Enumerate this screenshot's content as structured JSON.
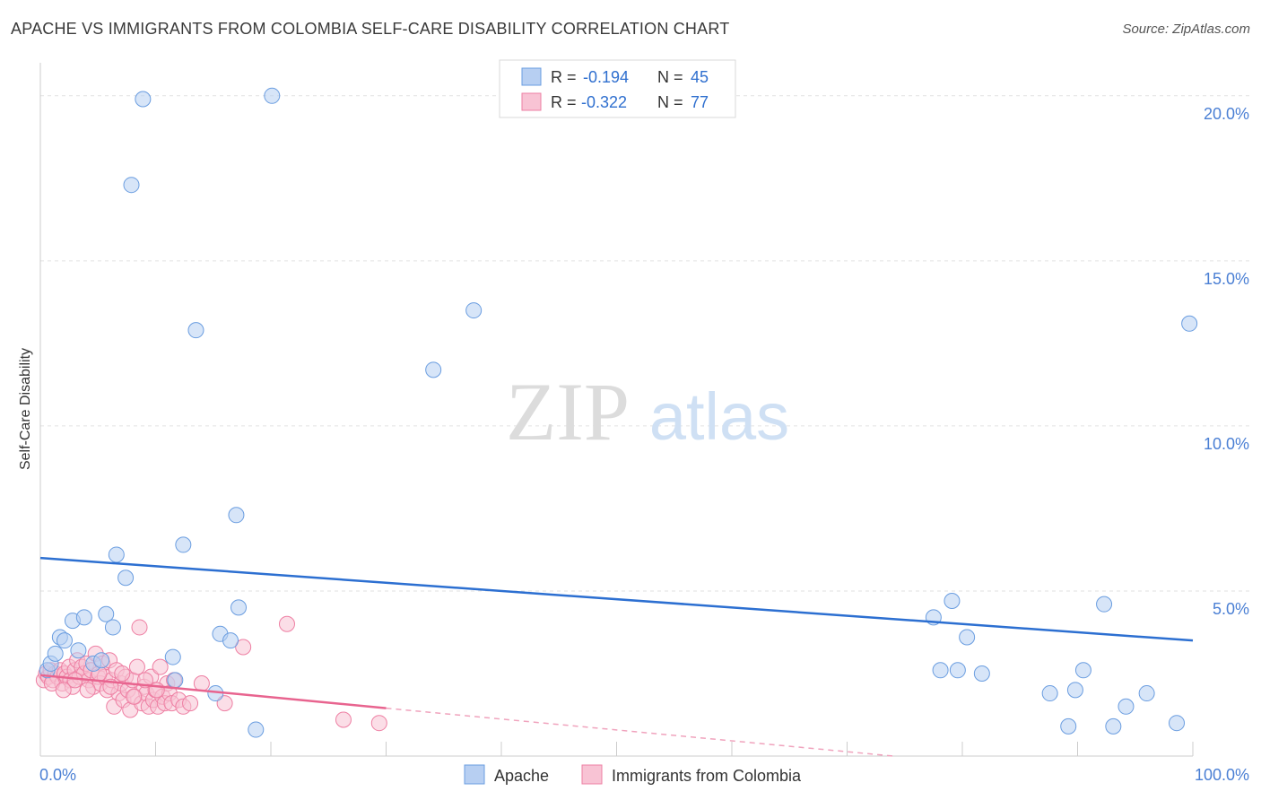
{
  "header": {
    "title": "APACHE VS IMMIGRANTS FROM COLOMBIA SELF-CARE DISABILITY CORRELATION CHART",
    "source": "Source: ZipAtlas.com"
  },
  "watermark": {
    "zip": "ZIP",
    "atlas": "atlas"
  },
  "legend": {
    "r_label": "R =",
    "n_label": "N =",
    "rows": [
      {
        "r": "-0.194",
        "n": "45"
      },
      {
        "r": "-0.322",
        "n": "77"
      }
    ]
  },
  "chart_data": {
    "type": "scatter",
    "title": "APACHE VS IMMIGRANTS FROM COLOMBIA SELF-CARE DISABILITY CORRELATION CHART",
    "xlabel": "",
    "ylabel": "Self-Care Disability",
    "xlim": [
      0,
      100
    ],
    "ylim": [
      0,
      21
    ],
    "x_tick_labels": [
      {
        "value": 0,
        "label": "0.0%"
      },
      {
        "value": 100,
        "label": "100.0%"
      }
    ],
    "y_tick_labels": [
      {
        "value": 5,
        "label": "5.0%"
      },
      {
        "value": 10,
        "label": "10.0%"
      },
      {
        "value": 15,
        "label": "15.0%"
      },
      {
        "value": 20,
        "label": "20.0%"
      }
    ],
    "series": [
      {
        "name": "Apache",
        "color": "#6a9de0",
        "fill": "#b7cff2",
        "r": -0.194,
        "n": 45,
        "trend": {
          "x0": 0,
          "y0": 6.0,
          "x1": 100,
          "y1": 3.5
        },
        "points": [
          [
            0.6,
            2.6
          ],
          [
            0.9,
            2.8
          ],
          [
            1.3,
            3.1
          ],
          [
            1.7,
            3.6
          ],
          [
            2.1,
            3.5
          ],
          [
            2.8,
            4.1
          ],
          [
            3.3,
            3.2
          ],
          [
            3.8,
            4.2
          ],
          [
            4.6,
            2.8
          ],
          [
            5.3,
            2.9
          ],
          [
            5.7,
            4.3
          ],
          [
            6.3,
            3.9
          ],
          [
            6.6,
            6.1
          ],
          [
            7.4,
            5.4
          ],
          [
            7.9,
            17.3
          ],
          [
            8.9,
            19.9
          ],
          [
            11.5,
            3.0
          ],
          [
            11.7,
            2.3
          ],
          [
            12.4,
            6.4
          ],
          [
            13.5,
            12.9
          ],
          [
            15.2,
            1.9
          ],
          [
            15.6,
            3.7
          ],
          [
            16.5,
            3.5
          ],
          [
            17.0,
            7.3
          ],
          [
            17.2,
            4.5
          ],
          [
            18.7,
            0.8
          ],
          [
            20.1,
            20.0
          ],
          [
            34.1,
            11.7
          ],
          [
            37.6,
            13.5
          ],
          [
            77.5,
            4.2
          ],
          [
            78.1,
            2.6
          ],
          [
            79.1,
            4.7
          ],
          [
            79.6,
            2.6
          ],
          [
            80.4,
            3.6
          ],
          [
            81.7,
            2.5
          ],
          [
            87.6,
            1.9
          ],
          [
            89.2,
            0.9
          ],
          [
            89.8,
            2.0
          ],
          [
            90.5,
            2.6
          ],
          [
            92.3,
            4.6
          ],
          [
            93.1,
            0.9
          ],
          [
            94.2,
            1.5
          ],
          [
            96.0,
            1.9
          ],
          [
            98.6,
            1.0
          ],
          [
            99.7,
            13.1
          ]
        ]
      },
      {
        "name": "Immigrants from Colombia",
        "color": "#ee7fa3",
        "fill": "#f8c3d4",
        "r": -0.322,
        "n": 77,
        "trend": {
          "x0": 0,
          "y0": 2.45,
          "x1": 30,
          "y1": 1.45
        },
        "trend_dashed": {
          "x0": 30,
          "y0": 1.45,
          "x1": 74,
          "y1": 0.0
        },
        "points": [
          [
            0.3,
            2.3
          ],
          [
            0.5,
            2.5
          ],
          [
            0.7,
            2.4
          ],
          [
            0.9,
            2.6
          ],
          [
            1.1,
            2.3
          ],
          [
            1.3,
            2.5
          ],
          [
            1.5,
            2.4
          ],
          [
            1.7,
            2.6
          ],
          [
            1.9,
            2.2
          ],
          [
            2.1,
            2.5
          ],
          [
            2.3,
            2.4
          ],
          [
            2.5,
            2.7
          ],
          [
            2.6,
            2.3
          ],
          [
            2.8,
            2.1
          ],
          [
            3.0,
            2.6
          ],
          [
            3.2,
            2.9
          ],
          [
            3.4,
            2.4
          ],
          [
            3.6,
            2.7
          ],
          [
            3.8,
            2.5
          ],
          [
            4.0,
            2.8
          ],
          [
            4.2,
            2.3
          ],
          [
            4.4,
            2.6
          ],
          [
            4.6,
            2.1
          ],
          [
            4.8,
            3.1
          ],
          [
            5.0,
            2.4
          ],
          [
            5.2,
            2.2
          ],
          [
            5.4,
            2.8
          ],
          [
            5.6,
            2.4
          ],
          [
            5.8,
            2.0
          ],
          [
            6.0,
            2.9
          ],
          [
            6.2,
            2.3
          ],
          [
            6.4,
            1.5
          ],
          [
            6.6,
            2.6
          ],
          [
            6.8,
            1.9
          ],
          [
            7.0,
            2.2
          ],
          [
            7.2,
            1.7
          ],
          [
            7.4,
            2.4
          ],
          [
            7.6,
            2.0
          ],
          [
            7.8,
            1.4
          ],
          [
            8.0,
            2.3
          ],
          [
            8.2,
            1.8
          ],
          [
            8.4,
            2.7
          ],
          [
            8.6,
            3.9
          ],
          [
            8.8,
            1.6
          ],
          [
            9.0,
            2.1
          ],
          [
            9.2,
            1.9
          ],
          [
            9.4,
            1.5
          ],
          [
            9.6,
            2.4
          ],
          [
            9.8,
            1.7
          ],
          [
            10.0,
            2.0
          ],
          [
            10.2,
            1.5
          ],
          [
            10.4,
            2.7
          ],
          [
            10.6,
            1.8
          ],
          [
            10.8,
            1.6
          ],
          [
            11.0,
            2.2
          ],
          [
            11.2,
            1.9
          ],
          [
            11.4,
            1.6
          ],
          [
            11.6,
            2.3
          ],
          [
            12.0,
            1.7
          ],
          [
            12.4,
            1.5
          ],
          [
            13.0,
            1.6
          ],
          [
            14.0,
            2.2
          ],
          [
            16.0,
            1.6
          ],
          [
            17.6,
            3.3
          ],
          [
            21.4,
            4.0
          ],
          [
            26.3,
            1.1
          ],
          [
            29.4,
            1.0
          ],
          [
            1.0,
            2.2
          ],
          [
            2.0,
            2.0
          ],
          [
            3.0,
            2.3
          ],
          [
            4.1,
            2.0
          ],
          [
            5.1,
            2.5
          ],
          [
            6.1,
            2.1
          ],
          [
            7.1,
            2.5
          ],
          [
            8.1,
            1.8
          ],
          [
            9.1,
            2.3
          ],
          [
            10.1,
            2.0
          ]
        ]
      }
    ]
  },
  "bottom_legend": [
    {
      "label": "Apache"
    },
    {
      "label": "Immigrants from Colombia"
    }
  ]
}
